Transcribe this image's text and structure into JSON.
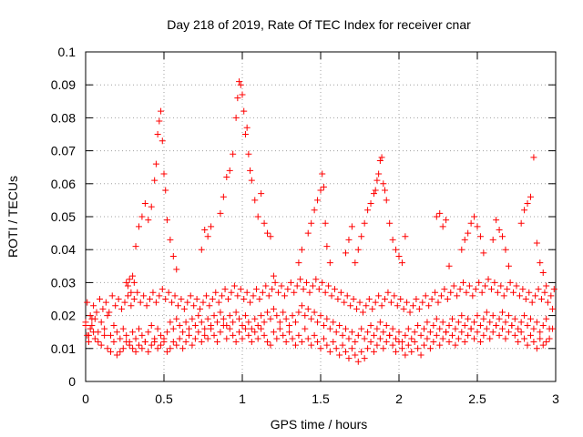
{
  "chart_data": {
    "type": "scatter",
    "title": "Day 218 of 2019, Rate Of TEC Index for receiver cnar",
    "xlabel": "GPS time / hours",
    "ylabel": "ROTI / TECUs",
    "xlim": [
      0,
      3
    ],
    "ylim": [
      0,
      0.1
    ],
    "xticks": [
      0,
      0.5,
      1,
      1.5,
      2,
      2.5,
      3
    ],
    "xtick_labels": [
      "0",
      "0.5",
      "1",
      "1.5",
      "2",
      "2.5",
      "3"
    ],
    "yticks": [
      0,
      0.01,
      0.02,
      0.03,
      0.04,
      0.05,
      0.06,
      0.07,
      0.08,
      0.09,
      0.1
    ],
    "ytick_labels": [
      "0",
      "0.01",
      "0.02",
      "0.03",
      "0.04",
      "0.05",
      "0.06",
      "0.07",
      "0.08",
      "0.09",
      "0.1"
    ],
    "grid": true,
    "marker": "+",
    "color": "#ff0000",
    "series": [
      {
        "name": "ROTI",
        "x": [
          0.0,
          0.01,
          0.02,
          0.03,
          0.04,
          0.05,
          0.06,
          0.08,
          0.1,
          0.12,
          0.14,
          0.16,
          0.18,
          0.2,
          0.22,
          0.24,
          0.26,
          0.28,
          0.3,
          0.32,
          0.34,
          0.36,
          0.38,
          0.4,
          0.42,
          0.44,
          0.46,
          0.48,
          0.5,
          0.52,
          0.54,
          0.56,
          0.58,
          0.6,
          0.62,
          0.64,
          0.66,
          0.68,
          0.7,
          0.72,
          0.74,
          0.76,
          0.78,
          0.8,
          0.82,
          0.84,
          0.86,
          0.88,
          0.9,
          0.92,
          0.94,
          0.96,
          0.98,
          1.0,
          1.02,
          1.04,
          1.06,
          1.08,
          1.1,
          1.12,
          1.14,
          1.16,
          1.18,
          1.2,
          1.22,
          1.24,
          1.26,
          1.28,
          1.3,
          1.32,
          1.34,
          1.36,
          1.38,
          1.4,
          1.42,
          1.44,
          1.46,
          1.48,
          1.5,
          1.52,
          1.54,
          1.56,
          1.58,
          1.6,
          1.62,
          1.64,
          1.66,
          1.68,
          1.7,
          1.72,
          1.74,
          1.76,
          1.78,
          1.8,
          1.82,
          1.84,
          1.86,
          1.88,
          1.9,
          1.92,
          1.94,
          1.96,
          1.98,
          2.0,
          2.02,
          2.04,
          2.06,
          2.08,
          2.1,
          2.12,
          2.14,
          2.16,
          2.18,
          2.2,
          2.22,
          2.24,
          2.26,
          2.28,
          2.3,
          2.32,
          2.34,
          2.36,
          2.38,
          2.4,
          2.42,
          2.44,
          2.46,
          2.48,
          2.5,
          2.52,
          2.54,
          2.56,
          2.58,
          2.6,
          2.62,
          2.64,
          2.66,
          2.68,
          2.7,
          2.72,
          2.74,
          2.76,
          2.78,
          2.8,
          2.82,
          2.84,
          2.86,
          2.88,
          2.9,
          2.92,
          2.94,
          2.96,
          2.98,
          0.0,
          0.02,
          0.04,
          0.06,
          0.08,
          0.1,
          0.12,
          0.14,
          0.16,
          0.18,
          0.2,
          0.22,
          0.24,
          0.26,
          0.28,
          0.3,
          0.32,
          0.34,
          0.36,
          0.38,
          0.4,
          0.42,
          0.44,
          0.46,
          0.48,
          0.5,
          0.52,
          0.54,
          0.56,
          0.58,
          0.6,
          0.62,
          0.64,
          0.66,
          0.68,
          0.7,
          0.72,
          0.74,
          0.76,
          0.78,
          0.8,
          0.82,
          0.84,
          0.86,
          0.88,
          0.9,
          0.92,
          0.94,
          0.96,
          0.98,
          1.0,
          1.02,
          1.04,
          1.06,
          1.08,
          1.1,
          1.12,
          1.14,
          1.16,
          1.18,
          1.2,
          1.22,
          1.24,
          1.26,
          1.28,
          1.3,
          1.32,
          1.34,
          1.36,
          1.38,
          1.4,
          1.42,
          1.44,
          1.46,
          1.48,
          1.5,
          1.52,
          1.54,
          1.56,
          1.58,
          1.6,
          1.62,
          1.64,
          1.66,
          1.68,
          1.7,
          1.72,
          1.74,
          1.76,
          1.78,
          1.8,
          1.82,
          1.84,
          1.86,
          1.88,
          1.9,
          1.92,
          1.94,
          1.96,
          1.98,
          2.0,
          2.02,
          2.04,
          2.06,
          2.08,
          2.1,
          2.12,
          2.14,
          2.16,
          2.18,
          2.2,
          2.22,
          2.24,
          2.26,
          2.28,
          2.3,
          2.32,
          2.34,
          2.36,
          2.38,
          2.4,
          2.42,
          2.44,
          2.46,
          2.48,
          2.5,
          2.52,
          2.54,
          2.56,
          2.58,
          2.6,
          2.62,
          2.64,
          2.66,
          2.68,
          2.7,
          2.72,
          2.74,
          2.76,
          2.78,
          2.8,
          2.82,
          2.84,
          2.86,
          2.88,
          2.9,
          2.92,
          2.94,
          2.96,
          2.98,
          0.01,
          0.03,
          0.05,
          0.07,
          0.09,
          0.11,
          0.13,
          0.15,
          0.17,
          0.19,
          0.21,
          0.23,
          0.25,
          0.27,
          0.29,
          0.31,
          0.33,
          0.35,
          0.37,
          0.39,
          0.41,
          0.43,
          0.45,
          0.47,
          0.49,
          0.51,
          0.53,
          0.55,
          0.57,
          0.59,
          0.61,
          0.63,
          0.65,
          0.67,
          0.69,
          0.71,
          0.73,
          0.75,
          0.77,
          0.79,
          0.81,
          0.83,
          0.85,
          0.87,
          0.89,
          0.91,
          0.93,
          0.95,
          0.97,
          0.99,
          1.01,
          1.03,
          1.05,
          1.07,
          1.09,
          1.11,
          1.13,
          1.15,
          1.17,
          1.19,
          1.21,
          1.23,
          1.25,
          1.27,
          1.29,
          1.31,
          1.33,
          1.35,
          1.37,
          1.39,
          1.41,
          1.43,
          1.45,
          1.47,
          1.49,
          1.51,
          1.53,
          1.55,
          1.57,
          1.59,
          1.61,
          1.63,
          1.65,
          1.67,
          1.69,
          1.71,
          1.73,
          1.75,
          1.77,
          1.79,
          1.81,
          1.83,
          1.85,
          1.87,
          1.89,
          1.91,
          1.93,
          1.95,
          1.97,
          1.99,
          2.01,
          2.03,
          2.05,
          2.07,
          2.09,
          2.11,
          2.13,
          2.15,
          2.17,
          2.19,
          2.21,
          2.23,
          2.25,
          2.27,
          2.29,
          2.31,
          2.33,
          2.35,
          2.37,
          2.39,
          2.41,
          2.43,
          2.45,
          2.47,
          2.49,
          2.51,
          2.53,
          2.55,
          2.57,
          2.59,
          2.61,
          2.63,
          2.65,
          2.67,
          2.69,
          2.71,
          2.73,
          2.75,
          2.77,
          2.79,
          2.81,
          2.83,
          2.85,
          2.87,
          2.89,
          2.91,
          2.93,
          2.95,
          2.97,
          2.99,
          0.26,
          0.27,
          0.28,
          0.29,
          0.3,
          0.31,
          0.32,
          0.34,
          0.36,
          0.38,
          0.4,
          0.42,
          0.44,
          0.45,
          0.46,
          0.47,
          0.48,
          0.49,
          0.5,
          0.51,
          0.52,
          0.54,
          0.56,
          0.58,
          0.74,
          0.76,
          0.78,
          0.8,
          0.86,
          0.88,
          0.9,
          0.92,
          0.94,
          0.96,
          0.97,
          0.98,
          0.99,
          1.0,
          1.01,
          1.02,
          1.03,
          1.04,
          1.05,
          1.06,
          1.08,
          1.1,
          1.12,
          1.14,
          1.16,
          1.18,
          1.2,
          1.36,
          1.38,
          1.42,
          1.44,
          1.46,
          1.48,
          1.5,
          1.51,
          1.52,
          1.53,
          1.54,
          1.56,
          1.66,
          1.68,
          1.7,
          1.72,
          1.74,
          1.76,
          1.78,
          1.8,
          1.82,
          1.84,
          1.85,
          1.86,
          1.87,
          1.88,
          1.89,
          1.9,
          1.91,
          1.92,
          1.94,
          1.96,
          1.98,
          2.0,
          2.02,
          2.04,
          2.24,
          2.26,
          2.28,
          2.3,
          2.32,
          2.4,
          2.42,
          2.44,
          2.46,
          2.48,
          2.5,
          2.52,
          2.54,
          2.6,
          2.62,
          2.64,
          2.66,
          2.68,
          2.7,
          2.78,
          2.8,
          2.82,
          2.84,
          2.86,
          2.88,
          2.9,
          2.92,
          2.94
        ],
        "y": [
          0.017,
          0.014,
          0.012,
          0.016,
          0.019,
          0.015,
          0.013,
          0.012,
          0.011,
          0.014,
          0.01,
          0.009,
          0.012,
          0.008,
          0.009,
          0.01,
          0.012,
          0.011,
          0.01,
          0.009,
          0.011,
          0.01,
          0.012,
          0.009,
          0.011,
          0.012,
          0.01,
          0.011,
          0.013,
          0.009,
          0.01,
          0.012,
          0.011,
          0.013,
          0.01,
          0.012,
          0.014,
          0.011,
          0.013,
          0.015,
          0.012,
          0.014,
          0.013,
          0.016,
          0.014,
          0.012,
          0.015,
          0.017,
          0.013,
          0.016,
          0.014,
          0.012,
          0.015,
          0.013,
          0.016,
          0.014,
          0.012,
          0.015,
          0.013,
          0.016,
          0.014,
          0.012,
          0.011,
          0.015,
          0.013,
          0.016,
          0.014,
          0.012,
          0.015,
          0.013,
          0.011,
          0.014,
          0.012,
          0.016,
          0.013,
          0.011,
          0.014,
          0.012,
          0.01,
          0.013,
          0.011,
          0.009,
          0.012,
          0.01,
          0.008,
          0.011,
          0.009,
          0.007,
          0.01,
          0.008,
          0.006,
          0.009,
          0.007,
          0.01,
          0.012,
          0.009,
          0.011,
          0.013,
          0.01,
          0.012,
          0.014,
          0.011,
          0.009,
          0.012,
          0.01,
          0.008,
          0.011,
          0.009,
          0.012,
          0.01,
          0.008,
          0.011,
          0.013,
          0.01,
          0.012,
          0.014,
          0.011,
          0.013,
          0.015,
          0.012,
          0.014,
          0.011,
          0.013,
          0.015,
          0.012,
          0.014,
          0.016,
          0.013,
          0.015,
          0.012,
          0.014,
          0.016,
          0.013,
          0.015,
          0.017,
          0.014,
          0.016,
          0.013,
          0.015,
          0.017,
          0.014,
          0.012,
          0.015,
          0.013,
          0.011,
          0.014,
          0.012,
          0.01,
          0.013,
          0.011,
          0.012,
          0.013,
          0.016,
          0.018,
          0.014,
          0.017,
          0.019,
          0.015,
          0.018,
          0.016,
          0.02,
          0.014,
          0.017,
          0.015,
          0.013,
          0.016,
          0.014,
          0.012,
          0.015,
          0.013,
          0.016,
          0.014,
          0.012,
          0.015,
          0.017,
          0.013,
          0.016,
          0.014,
          0.012,
          0.015,
          0.018,
          0.016,
          0.019,
          0.017,
          0.015,
          0.018,
          0.016,
          0.019,
          0.017,
          0.02,
          0.018,
          0.016,
          0.019,
          0.017,
          0.02,
          0.018,
          0.021,
          0.019,
          0.017,
          0.02,
          0.018,
          0.021,
          0.019,
          0.017,
          0.02,
          0.018,
          0.016,
          0.019,
          0.017,
          0.02,
          0.018,
          0.021,
          0.019,
          0.022,
          0.02,
          0.018,
          0.021,
          0.019,
          0.017,
          0.02,
          0.018,
          0.021,
          0.023,
          0.02,
          0.022,
          0.019,
          0.021,
          0.018,
          0.02,
          0.017,
          0.019,
          0.016,
          0.018,
          0.015,
          0.017,
          0.014,
          0.016,
          0.013,
          0.015,
          0.012,
          0.014,
          0.016,
          0.013,
          0.015,
          0.017,
          0.014,
          0.016,
          0.018,
          0.015,
          0.017,
          0.014,
          0.016,
          0.013,
          0.015,
          0.012,
          0.014,
          0.016,
          0.013,
          0.015,
          0.017,
          0.014,
          0.016,
          0.018,
          0.015,
          0.017,
          0.019,
          0.016,
          0.018,
          0.015,
          0.017,
          0.019,
          0.016,
          0.018,
          0.02,
          0.017,
          0.019,
          0.016,
          0.018,
          0.02,
          0.017,
          0.019,
          0.021,
          0.018,
          0.02,
          0.017,
          0.019,
          0.021,
          0.018,
          0.02,
          0.017,
          0.019,
          0.016,
          0.018,
          0.02,
          0.017,
          0.019,
          0.016,
          0.018,
          0.015,
          0.017,
          0.019,
          0.016,
          0.022,
          0.024,
          0.02,
          0.023,
          0.021,
          0.025,
          0.022,
          0.024,
          0.021,
          0.026,
          0.023,
          0.025,
          0.022,
          0.024,
          0.026,
          0.023,
          0.025,
          0.027,
          0.024,
          0.026,
          0.023,
          0.025,
          0.027,
          0.024,
          0.026,
          0.028,
          0.025,
          0.027,
          0.024,
          0.026,
          0.023,
          0.025,
          0.022,
          0.024,
          0.026,
          0.023,
          0.025,
          0.022,
          0.024,
          0.026,
          0.023,
          0.025,
          0.027,
          0.024,
          0.026,
          0.028,
          0.025,
          0.027,
          0.029,
          0.026,
          0.028,
          0.025,
          0.027,
          0.024,
          0.026,
          0.028,
          0.025,
          0.027,
          0.029,
          0.026,
          0.028,
          0.03,
          0.027,
          0.029,
          0.026,
          0.028,
          0.03,
          0.027,
          0.029,
          0.031,
          0.028,
          0.03,
          0.027,
          0.029,
          0.031,
          0.028,
          0.03,
          0.027,
          0.029,
          0.026,
          0.028,
          0.025,
          0.027,
          0.024,
          0.026,
          0.023,
          0.025,
          0.022,
          0.024,
          0.021,
          0.023,
          0.025,
          0.022,
          0.024,
          0.026,
          0.023,
          0.025,
          0.027,
          0.024,
          0.026,
          0.023,
          0.025,
          0.022,
          0.024,
          0.021,
          0.023,
          0.025,
          0.022,
          0.024,
          0.026,
          0.023,
          0.025,
          0.027,
          0.024,
          0.026,
          0.028,
          0.025,
          0.027,
          0.029,
          0.026,
          0.028,
          0.03,
          0.027,
          0.029,
          0.026,
          0.028,
          0.03,
          0.027,
          0.029,
          0.031,
          0.028,
          0.03,
          0.027,
          0.029,
          0.026,
          0.028,
          0.03,
          0.027,
          0.029,
          0.026,
          0.028,
          0.025,
          0.027,
          0.024,
          0.026,
          0.028,
          0.025,
          0.027,
          0.024,
          0.026,
          0.028,
          0.03,
          0.029,
          0.031,
          0.027,
          0.032,
          0.03,
          0.041,
          0.047,
          0.05,
          0.054,
          0.049,
          0.053,
          0.061,
          0.066,
          0.075,
          0.079,
          0.082,
          0.073,
          0.063,
          0.058,
          0.049,
          0.043,
          0.038,
          0.034,
          0.04,
          0.046,
          0.044,
          0.047,
          0.051,
          0.056,
          0.062,
          0.064,
          0.069,
          0.08,
          0.086,
          0.091,
          0.09,
          0.087,
          0.082,
          0.075,
          0.077,
          0.069,
          0.064,
          0.061,
          0.055,
          0.05,
          0.057,
          0.048,
          0.045,
          0.044,
          0.032,
          0.036,
          0.04,
          0.045,
          0.048,
          0.052,
          0.055,
          0.058,
          0.063,
          0.059,
          0.048,
          0.041,
          0.036,
          0.039,
          0.043,
          0.047,
          0.036,
          0.04,
          0.044,
          0.048,
          0.052,
          0.054,
          0.057,
          0.058,
          0.061,
          0.063,
          0.067,
          0.068,
          0.06,
          0.058,
          0.055,
          0.048,
          0.043,
          0.04,
          0.038,
          0.036,
          0.044,
          0.05,
          0.051,
          0.047,
          0.049,
          0.035,
          0.04,
          0.043,
          0.045,
          0.048,
          0.05,
          0.047,
          0.044,
          0.039,
          0.043,
          0.049,
          0.046,
          0.044,
          0.04,
          0.035,
          0.048,
          0.052,
          0.054,
          0.056,
          0.068,
          0.042,
          0.036,
          0.033,
          0.029
        ]
      }
    ]
  }
}
